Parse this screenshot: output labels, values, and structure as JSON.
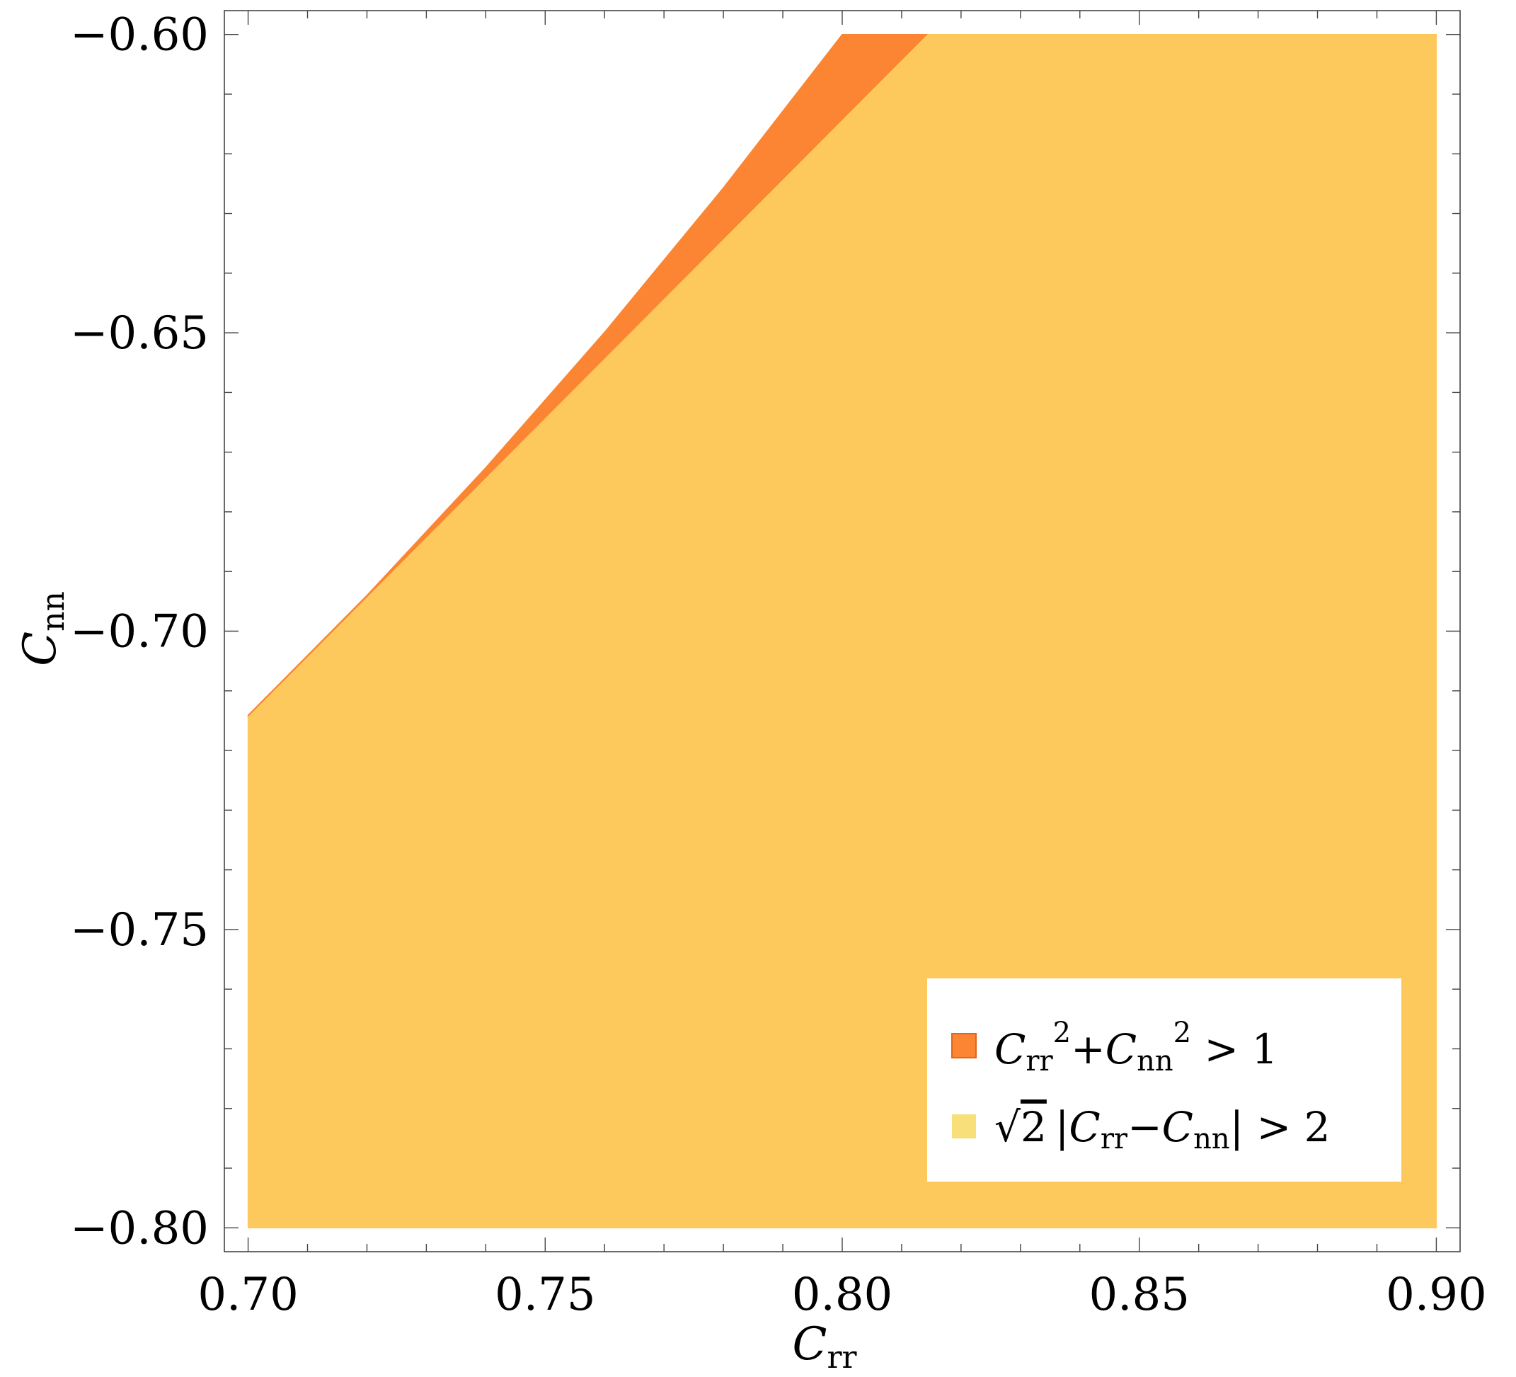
{
  "chart_data": {
    "type": "area",
    "xlabel": {
      "main": "C",
      "sub": "rr"
    },
    "ylabel": {
      "main": "C",
      "sub": "nn"
    },
    "xlim": [
      0.696,
      0.904
    ],
    "ylim": [
      -0.804,
      -0.596
    ],
    "x_ticks": [
      0.7,
      0.75,
      0.8,
      0.85,
      0.9
    ],
    "x_tick_labels": [
      "0.70",
      "0.75",
      "0.80",
      "0.85",
      "0.90"
    ],
    "y_ticks": [
      -0.6,
      -0.65,
      -0.7,
      -0.75,
      -0.8
    ],
    "y_tick_labels": [
      "−0.60",
      "−0.65",
      "−0.70",
      "−0.75",
      "−0.80"
    ],
    "legend_position": "bottom-right",
    "series": [
      {
        "name": "Crr^2 + Cnn^2 > 1",
        "color": "#fb8532",
        "region": [
          [
            0.7,
            -0.7141
          ],
          [
            0.72,
            -0.694
          ],
          [
            0.74,
            -0.6726
          ],
          [
            0.76,
            -0.6499
          ],
          [
            0.78,
            -0.6257
          ],
          [
            0.8,
            -0.6
          ],
          [
            0.8142,
            -0.6
          ],
          [
            0.8,
            -0.6142
          ],
          [
            0.78,
            -0.6342
          ],
          [
            0.76,
            -0.6542
          ],
          [
            0.74,
            -0.6742
          ],
          [
            0.72,
            -0.6942
          ],
          [
            0.7,
            -0.7142
          ]
        ]
      },
      {
        "name": "√2 |Crr − Cnn| > 2",
        "color": "#fdc95d",
        "region": [
          [
            0.7,
            -0.7142
          ],
          [
            0.8142,
            -0.6
          ],
          [
            0.9,
            -0.6
          ],
          [
            0.9,
            -0.8
          ],
          [
            0.7,
            -0.8
          ]
        ]
      }
    ]
  },
  "legend": {
    "item1": {
      "c": "C",
      "rr": "rr",
      "two": "2",
      "plus": "+",
      "nn": "nn",
      "rel": " > 1"
    },
    "item2": {
      "sqrt": "√",
      "two": "2",
      "bar": "|",
      "c": "C",
      "rr": "rr",
      "minus": "−",
      "nn": "nn",
      "rel": " > 2"
    }
  }
}
